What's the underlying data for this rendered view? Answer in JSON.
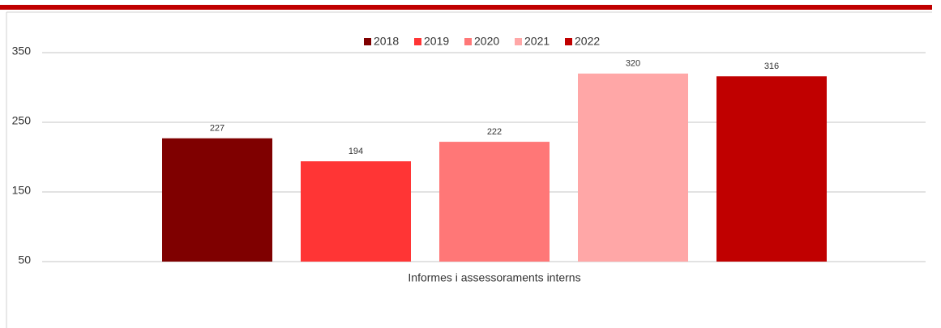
{
  "chart_data": {
    "type": "bar",
    "categories": [
      "Informes i assessoraments interns"
    ],
    "series": [
      {
        "name": "2018",
        "color": "#7f0000",
        "values": [
          227
        ]
      },
      {
        "name": "2019",
        "color": "#ff3535",
        "values": [
          194
        ]
      },
      {
        "name": "2020",
        "color": "#ff7777",
        "values": [
          222
        ]
      },
      {
        "name": "2021",
        "color": "#ffa7a7",
        "values": [
          320
        ]
      },
      {
        "name": "2022",
        "color": "#c00000",
        "values": [
          316
        ]
      }
    ],
    "ylim": [
      50,
      350
    ],
    "yticks": [
      50,
      150,
      250,
      350
    ],
    "grid": true,
    "legend": "top"
  }
}
